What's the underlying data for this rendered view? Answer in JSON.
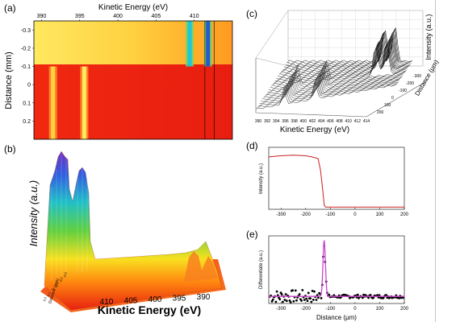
{
  "panels": [
    "(a)",
    "(b)",
    "(c)",
    "(d)",
    "(e)"
  ],
  "chart_data": [
    {
      "id": "a",
      "type": "heatmap",
      "title": "",
      "xlabel": "Kinetic Energy (eV)",
      "ylabel": "Distance (mm)",
      "x_ticks": [
        "390",
        "395",
        "400",
        "405",
        "410"
      ],
      "y_ticks": [
        "-0.3",
        "-0.2",
        "-0.1",
        "0",
        "0.1",
        "0.2"
      ],
      "xlim": [
        389,
        415
      ],
      "ylim": [
        0.3,
        -0.35
      ],
      "x_axis_position": "top",
      "boundary_distance": -0.1,
      "lines": [
        {
          "region": "upper",
          "x": 409.4,
          "color": "#1ec8d8"
        },
        {
          "region": "upper",
          "x": 411.8,
          "color": "#1e5cd0"
        },
        {
          "region": "lower",
          "x": 391.5,
          "color": "#ffd040"
        },
        {
          "region": "lower",
          "x": 395.6,
          "color": "#ffe860"
        }
      ],
      "markers": [
        411.4,
        412.6
      ]
    },
    {
      "id": "b",
      "type": "area",
      "title": "",
      "xlabel": "Kinetic Energy (eV)",
      "ylabel": "Intensity (a.u.)",
      "zlabel": "Distance (mm)",
      "x_ticks": [
        "410",
        "405",
        "400",
        "395",
        "390"
      ],
      "z_ticks": [
        "0.2",
        "0.1",
        "0",
        "-0.1",
        "-0.2",
        "-0.3"
      ]
    },
    {
      "id": "c",
      "type": "area",
      "title": "",
      "xlabel": "Kinetic Energy (eV)",
      "ylabel": "Distance (µm)",
      "zlabel": "Intensity (a.u.)",
      "x_ticks": [
        "390",
        "392",
        "394",
        "396",
        "398",
        "400",
        "402",
        "404",
        "406",
        "408",
        "410",
        "412",
        "414"
      ],
      "y_ticks": [
        "-300",
        "-200",
        "-100",
        "0",
        "100",
        "200"
      ]
    },
    {
      "id": "d",
      "type": "line",
      "title": "",
      "xlabel": "",
      "ylabel": "Intensity (a.u.)",
      "xlim": [
        -350,
        200
      ],
      "x_ticks": [
        -300,
        -200,
        -100,
        0,
        100,
        200
      ],
      "ylim": [
        0,
        1.1
      ],
      "color": "#c81e1e",
      "series": [
        {
          "x": [
            -350,
            -300,
            -250,
            -200,
            -175,
            -150,
            -140,
            -130,
            -125,
            -120,
            -100,
            -50,
            0,
            50,
            100,
            150,
            200
          ],
          "y": [
            0.93,
            0.95,
            0.96,
            0.95,
            0.93,
            0.9,
            0.7,
            0.3,
            0.08,
            0.04,
            0.04,
            0.04,
            0.04,
            0.04,
            0.04,
            0.04,
            0.04
          ]
        }
      ]
    },
    {
      "id": "e",
      "type": "scatter",
      "title": "",
      "xlabel": "Distance (µm)",
      "ylabel": "Differentiate (a.u.)",
      "xlim": [
        -350,
        200
      ],
      "x_ticks": [
        -300,
        -200,
        -100,
        0,
        100,
        200
      ],
      "ylim": [
        -0.1,
        1.05
      ],
      "fit_color": "#cc44cc",
      "point_color": "#000000",
      "fit_center": -125,
      "fit_width": 7,
      "fit_peak": 0.95,
      "fit_baseline": 0.02
    }
  ]
}
